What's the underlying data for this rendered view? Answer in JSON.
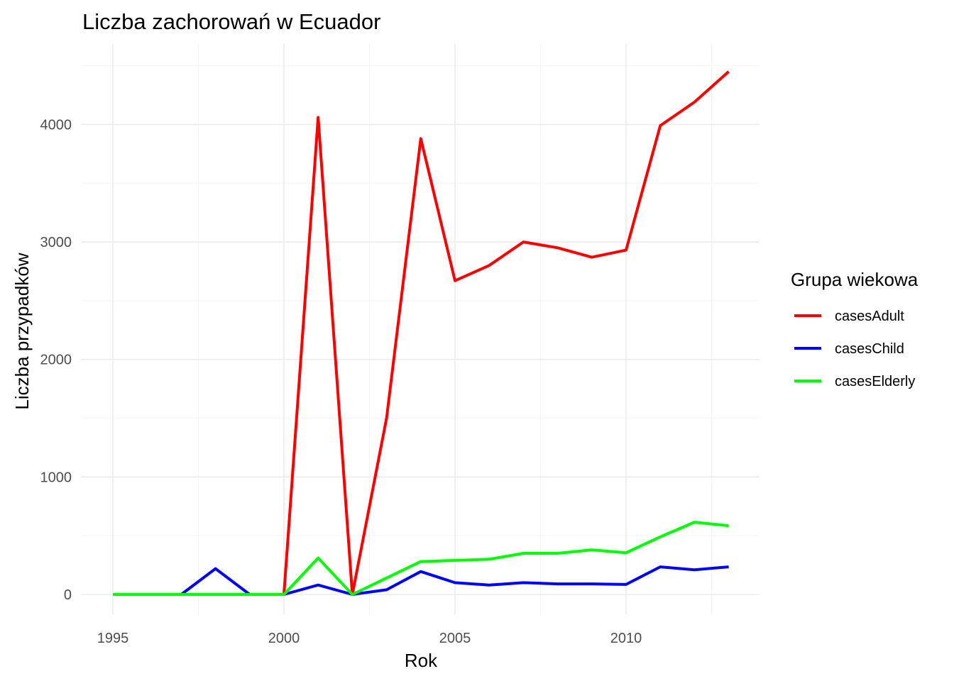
{
  "chart_data": {
    "type": "line",
    "title": "Liczba zachorowań w Ecuador",
    "xlabel": "Rok",
    "ylabel": "Liczba przypadków",
    "xlim": [
      1995,
      2013
    ],
    "ylim": [
      0,
      4450
    ],
    "x_ticks": [
      1995,
      2000,
      2005,
      2010
    ],
    "y_ticks": [
      0,
      1000,
      2000,
      3000,
      4000
    ],
    "grid": true,
    "legend": {
      "title": "Grupa wiekowa",
      "placement": "right"
    },
    "x": [
      1995,
      1996,
      1997,
      1998,
      1999,
      2000,
      2001,
      2002,
      2003,
      2004,
      2005,
      2006,
      2007,
      2008,
      2009,
      2010,
      2011,
      2012,
      2013
    ],
    "series": [
      {
        "name": "casesAdult",
        "color": "#ff0000",
        "values": [
          0,
          0,
          0,
          0,
          0,
          0,
          4060,
          0,
          1500,
          3880,
          2670,
          2800,
          3000,
          2950,
          2870,
          2930,
          3990,
          4190,
          4450
        ]
      },
      {
        "name": "casesChild",
        "color": "#0000ff",
        "values": [
          0,
          0,
          0,
          220,
          0,
          0,
          80,
          0,
          40,
          195,
          100,
          80,
          100,
          90,
          90,
          85,
          235,
          210,
          235
        ]
      },
      {
        "name": "casesElderly",
        "color": "#00ff00",
        "values": [
          0,
          0,
          0,
          0,
          0,
          0,
          310,
          0,
          140,
          280,
          290,
          300,
          350,
          350,
          380,
          355,
          490,
          615,
          585
        ]
      }
    ]
  }
}
